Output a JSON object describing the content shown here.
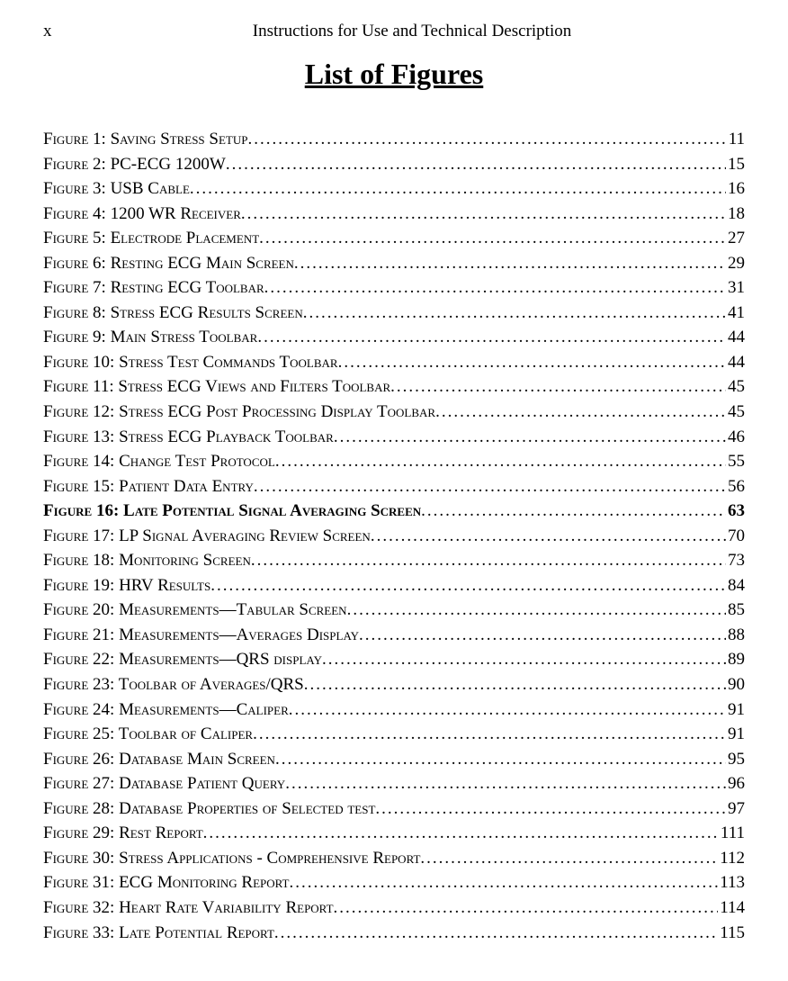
{
  "header": {
    "roman": "x",
    "title": "Instructions for Use and Technical Description"
  },
  "main_title": "List of Figures",
  "entries": [
    {
      "label": "Figure 1: Saving Stress Setup",
      "page": "11",
      "bold": false
    },
    {
      "label": "Figure 2: PC-ECG 1200W",
      "page": "15",
      "bold": false
    },
    {
      "label": "Figure 3: USB Cable",
      "page": "16",
      "bold": false
    },
    {
      "label": "Figure 4: 1200 WR Receiver",
      "page": "18",
      "bold": false
    },
    {
      "label": "Figure 5: Electrode Placement",
      "page": "27",
      "bold": false
    },
    {
      "label": "Figure 6: Resting ECG Main Screen",
      "page": "29",
      "bold": false
    },
    {
      "label": "Figure 7: Resting ECG Toolbar",
      "page": "31",
      "bold": false
    },
    {
      "label": "Figure 8: Stress ECG Results Screen",
      "page": "41",
      "bold": false
    },
    {
      "label": "Figure 9: Main Stress Toolbar",
      "page": "44",
      "bold": false
    },
    {
      "label": "Figure 10: Stress Test Commands Toolbar",
      "page": "44",
      "bold": false
    },
    {
      "label": "Figure 11: Stress ECG Views and Filters Toolbar",
      "page": "45",
      "bold": false
    },
    {
      "label": "Figure 12: Stress ECG Post Processing Display Toolbar",
      "page": "45",
      "bold": false
    },
    {
      "label": "Figure 13: Stress ECG Playback Toolbar",
      "page": "46",
      "bold": false
    },
    {
      "label": "Figure 14: Change Test Protocol",
      "page": "55",
      "bold": false
    },
    {
      "label": "Figure 15: Patient Data Entry",
      "page": "56",
      "bold": false
    },
    {
      "label": "Figure 16: Late Potential Signal Averaging Screen",
      "page": "63",
      "bold": true
    },
    {
      "label": "Figure 17: LP Signal Averaging Review Screen",
      "page": "70",
      "bold": false
    },
    {
      "label": "Figure 18: Monitoring Screen",
      "page": "73",
      "bold": false
    },
    {
      "label": "Figure 19: HRV Results",
      "page": "84",
      "bold": false
    },
    {
      "label": "Figure 20: Measurements—Tabular Screen",
      "page": "85",
      "bold": false
    },
    {
      "label": "Figure 21: Measurements—Averages Display",
      "page": "88",
      "bold": false
    },
    {
      "label": "Figure 22: Measurements—QRS display",
      "page": "89",
      "bold": false
    },
    {
      "label": "Figure 23: Toolbar of Averages/QRS",
      "page": "90",
      "bold": false
    },
    {
      "label": "Figure 24: Measurements—Caliper",
      "page": "91",
      "bold": false
    },
    {
      "label": "Figure 25: Toolbar of Caliper",
      "page": "91",
      "bold": false
    },
    {
      "label": "Figure 26: Database Main Screen",
      "page": "95",
      "bold": false
    },
    {
      "label": "Figure 27: Database Patient Query",
      "page": "96",
      "bold": false
    },
    {
      "label": "Figure 28: Database Properties of Selected test",
      "page": "97",
      "bold": false
    },
    {
      "label": "Figure 29: Rest Report",
      "page": "111",
      "bold": false
    },
    {
      "label": "Figure 30: Stress Applications - Comprehensive Report",
      "page": "112",
      "bold": false
    },
    {
      "label": "Figure 31: ECG Monitoring Report",
      "page": "113",
      "bold": false
    },
    {
      "label": "Figure 32:  Heart Rate Variability Report",
      "page": "114",
      "bold": false
    },
    {
      "label": "Figure 33: Late Potential Report",
      "page": "115",
      "bold": false
    }
  ]
}
